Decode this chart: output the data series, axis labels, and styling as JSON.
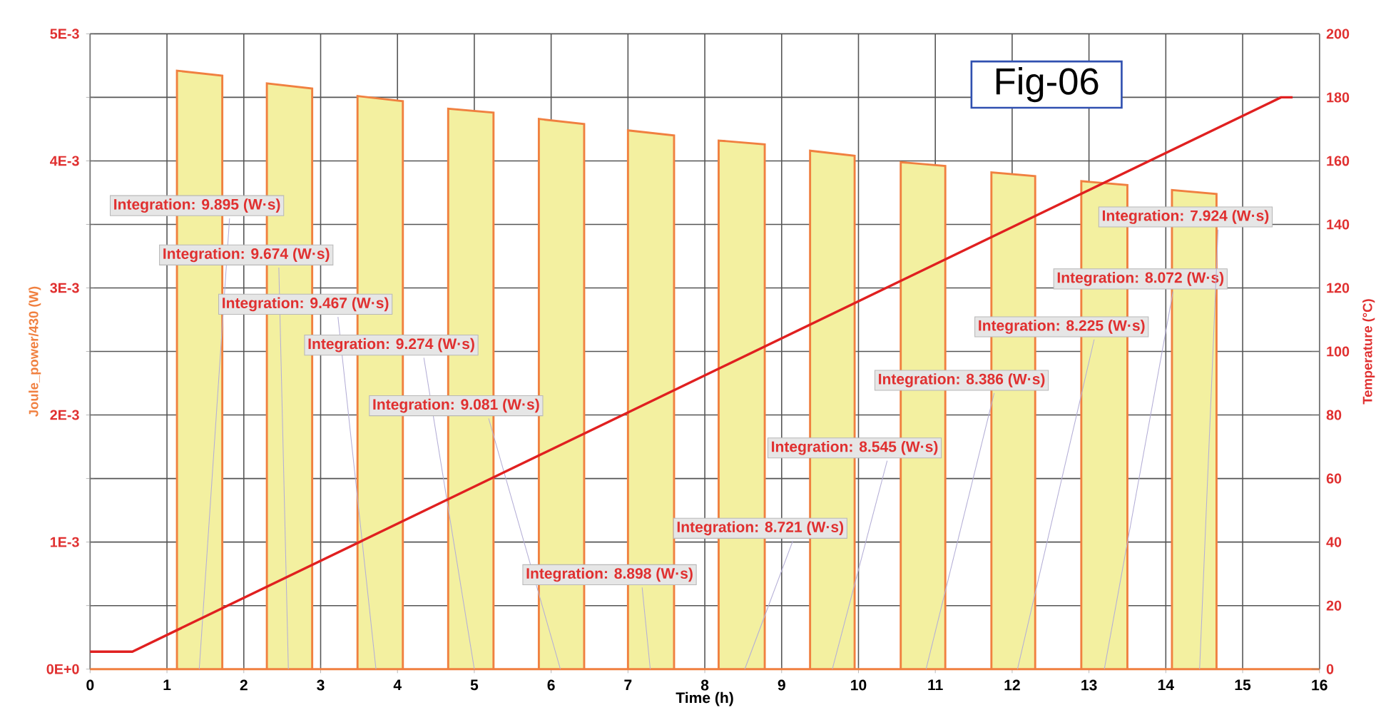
{
  "chart_data": {
    "type": "area",
    "xlabel": "Time (h)",
    "ylabel": "Joule_power/430 (W)",
    "y2label": "Temperature (°C)",
    "xlim": [
      0,
      16
    ],
    "xticks": [
      0,
      1,
      2,
      3,
      4,
      5,
      6,
      7,
      8,
      9,
      10,
      11,
      12,
      13,
      14,
      15,
      16
    ],
    "ylim": [
      0,
      0.005
    ],
    "yticks": [
      {
        "value": 0,
        "label": "0E+0"
      },
      {
        "value": 0.0005,
        "label": null
      },
      {
        "value": 0.001,
        "label": "1E-3"
      },
      {
        "value": 0.0015,
        "label": null
      },
      {
        "value": 0.002,
        "label": "2E-3"
      },
      {
        "value": 0.0025,
        "label": null
      },
      {
        "value": 0.003,
        "label": "3E-3"
      },
      {
        "value": 0.0035,
        "label": null
      },
      {
        "value": 0.004,
        "label": "4E-3"
      },
      {
        "value": 0.0045,
        "label": null
      },
      {
        "value": 0.005,
        "label": "5E-3"
      }
    ],
    "y2lim": [
      0,
      200
    ],
    "y2ticks": [
      0,
      20,
      40,
      60,
      80,
      100,
      120,
      140,
      160,
      180,
      200
    ],
    "grid": true,
    "marker": "none",
    "series": [
      {
        "color": "#f08040",
        "x": [
          0,
          1.13,
          1.13,
          1.72,
          1.72,
          2.3,
          2.3,
          2.89,
          2.89,
          3.48,
          3.48,
          4.07,
          4.07,
          4.66,
          4.66,
          5.25,
          5.25,
          5.84,
          5.84,
          6.43,
          6.43,
          7.0,
          7.0,
          7.6,
          7.6,
          8.18,
          8.18,
          8.78,
          8.78,
          9.37,
          9.37,
          9.95,
          9.95,
          10.55,
          10.55,
          11.13,
          11.13,
          11.73,
          11.73,
          12.3,
          12.3,
          12.9,
          12.9,
          13.5,
          13.5,
          14.08,
          14.08,
          14.66,
          14.66,
          16
        ],
        "values": [
          0,
          0,
          0.00471,
          0.00467,
          0,
          0,
          0.00461,
          0.00457,
          0,
          0,
          0.00451,
          0.00447,
          0,
          0,
          0.00441,
          0.00438,
          0,
          0,
          0.00433,
          0.00429,
          0,
          0,
          0.00424,
          0.0042,
          0,
          0,
          0.00416,
          0.00413,
          0,
          0,
          0.00408,
          0.00404,
          0,
          0,
          0.00399,
          0.00396,
          0,
          0,
          0.00391,
          0.00388,
          0,
          0,
          0.00384,
          0.00381,
          0,
          0,
          0.00377,
          0.00374,
          0,
          0
        ]
      },
      {
        "type": "line",
        "axis": "y2",
        "color": "#e02020",
        "line_style": "solid",
        "x": [
          0,
          0.55,
          15.5,
          15.65
        ],
        "values": [
          5.5,
          5.5,
          180,
          180
        ]
      }
    ],
    "annotations": [
      {
        "text": "Integration:  9.895 (W·s)",
        "x": 1.42,
        "y": 0
      },
      {
        "text": "Integration:  9.674 (W·s)",
        "x": 2.58,
        "y": 0
      },
      {
        "text": "Integration:  9.467 (W·s)",
        "x": 3.72,
        "y": 0
      },
      {
        "text": "Integration:  9.274 (W·s)",
        "x": 5.0,
        "y": 0
      },
      {
        "text": "Integration:  9.081 (W·s)",
        "x": 6.12,
        "y": 0
      },
      {
        "text": "Integration:  8.898 (W·s)",
        "x": 7.29,
        "y": 0
      },
      {
        "text": "Integration:  8.721 (W·s)",
        "x": 8.52,
        "y": 0
      },
      {
        "text": "Integration:  8.545 (W·s)",
        "x": 9.66,
        "y": 0
      },
      {
        "text": "Integration:  8.386 (W·s)",
        "x": 10.88,
        "y": 0
      },
      {
        "text": "Integration:  8.225 (W·s)",
        "x": 12.07,
        "y": 0
      },
      {
        "text": "Integration:  8.072 (W·s)",
        "x": 13.2,
        "y": 0
      },
      {
        "text": "Integration:  7.924 (W·s)",
        "x": 14.44,
        "y": 0
      },
      "Fig-06"
    ]
  }
}
